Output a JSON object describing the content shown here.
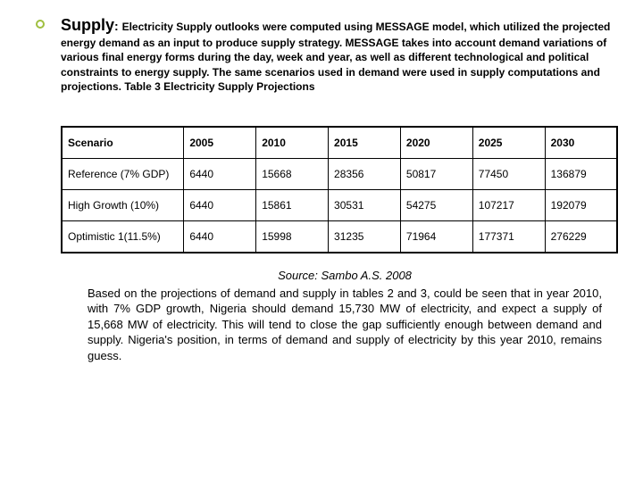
{
  "heading": {
    "title": "Supply",
    "body": "Electricity Supply outlooks were computed using MESSAGE model, which utilized the projected energy demand as an input to produce supply strategy.  MESSAGE takes into account demand variations of various final energy forms during the day, week and year, as well as different technological and political constraints to energy supply. The same scenarios used in demand were used in supply computations and projections. Table 3 Electricity Supply Projections"
  },
  "table": {
    "type": "table",
    "columns": [
      "Scenario",
      "2005",
      "2010",
      "2015",
      "2020",
      "2025",
      "2030"
    ],
    "column_widths": [
      "22%",
      "13%",
      "13%",
      "13%",
      "13%",
      "13%",
      "13%"
    ],
    "rows": [
      [
        "Reference (7% GDP)",
        "6440",
        "15668",
        "28356",
        "50817",
        "77450",
        "136879"
      ],
      [
        "High Growth (10%)",
        "6440",
        "15861",
        "30531",
        "54275",
        "107217",
        "192079"
      ],
      [
        "Optimistic 1(11.5%)",
        "6440",
        "15998",
        "31235",
        "71964",
        "177371",
        "276229"
      ]
    ],
    "border_color": "#000000",
    "header_fontsize": 12,
    "cell_fontsize": 12,
    "cell_padding": "10px 6px"
  },
  "source": {
    "citation": "Source:  Sambo A.S. 2008",
    "paragraph": "Based on the projections of demand and supply in tables 2 and 3, could be seen that in year 2010, with 7% GDP growth, Nigeria should demand 15,730 MW of electricity, and expect a supply of 15,668 MW of electricity.  This will tend to close the gap sufficiently enough between demand and supply. Nigeria's position, in terms of demand and supply of electricity by this year 2010, remains guess."
  },
  "style": {
    "background_color": "#ffffff",
    "text_color": "#000000",
    "bullet_color": "#9fbf3f",
    "title_fontsize": 18,
    "body_fontsize": 12,
    "source_fontsize": 13
  }
}
